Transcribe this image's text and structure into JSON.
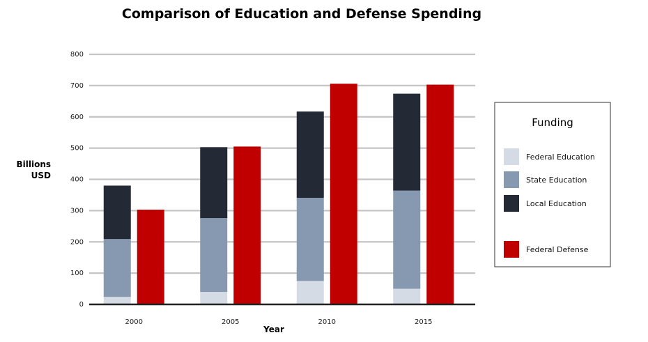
{
  "chart_data": {
    "type": "bar",
    "title": "Comparison of Education and Defense Spending",
    "xlabel": "Year",
    "ylabel_lines": [
      "Billions",
      "USD"
    ],
    "ylim": [
      0,
      800
    ],
    "yticks": [
      0,
      100,
      200,
      300,
      400,
      500,
      600,
      700,
      800
    ],
    "grid": true,
    "categories": [
      "2000",
      "2005",
      "2010",
      "2015"
    ],
    "series": [
      {
        "name": "Federal Education",
        "stack": "education",
        "color": "#d5dbe5",
        "values": [
          24,
          40,
          75,
          50
        ]
      },
      {
        "name": "State Education",
        "stack": "education",
        "color": "#8799b1",
        "values": [
          185,
          236,
          266,
          314
        ]
      },
      {
        "name": "Local Education",
        "stack": "education",
        "color": "#242a35",
        "values": [
          171,
          227,
          276,
          310
        ]
      },
      {
        "name": "Federal Defense",
        "stack": "defense",
        "color": "#c00000",
        "values": [
          303,
          505,
          706,
          703
        ]
      }
    ],
    "legend": {
      "title": "Funding",
      "position": "right"
    }
  }
}
